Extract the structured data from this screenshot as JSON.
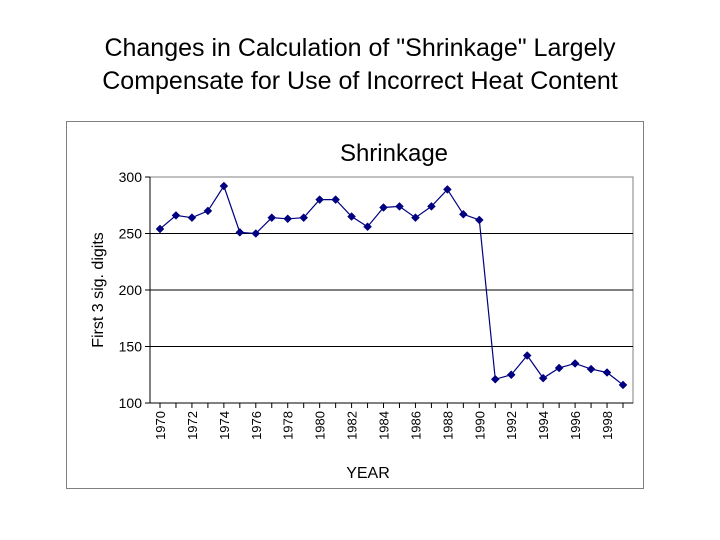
{
  "slide": {
    "title_line1": "Changes in Calculation of \"Shrinkage\" Largely",
    "title_line2": "Compensate for Use of Incorrect Heat Content"
  },
  "chart_data": {
    "type": "line",
    "title": "Shrinkage",
    "xlabel": "YEAR",
    "ylabel": "First 3 sig. digits",
    "ylim": [
      100,
      300
    ],
    "yticks": [
      100,
      150,
      200,
      250,
      300
    ],
    "xlim": [
      1970,
      1999
    ],
    "xticks": [
      1970,
      1972,
      1974,
      1976,
      1978,
      1980,
      1982,
      1984,
      1986,
      1988,
      1990,
      1992,
      1994,
      1996,
      1998
    ],
    "grid": true,
    "legend": "none",
    "series_color": "#000080",
    "x": [
      1970,
      1971,
      1972,
      1973,
      1974,
      1975,
      1976,
      1977,
      1978,
      1979,
      1980,
      1981,
      1982,
      1983,
      1984,
      1985,
      1986,
      1987,
      1988,
      1989,
      1990,
      1991,
      1992,
      1993,
      1994,
      1995,
      1996,
      1997,
      1998,
      1999
    ],
    "y": [
      254,
      266,
      264,
      270,
      292,
      251,
      250,
      264,
      263,
      264,
      280,
      280,
      265,
      256,
      273,
      274,
      264,
      274,
      289,
      267,
      262,
      121,
      125,
      142,
      122,
      131,
      135,
      130,
      127,
      116
    ]
  }
}
